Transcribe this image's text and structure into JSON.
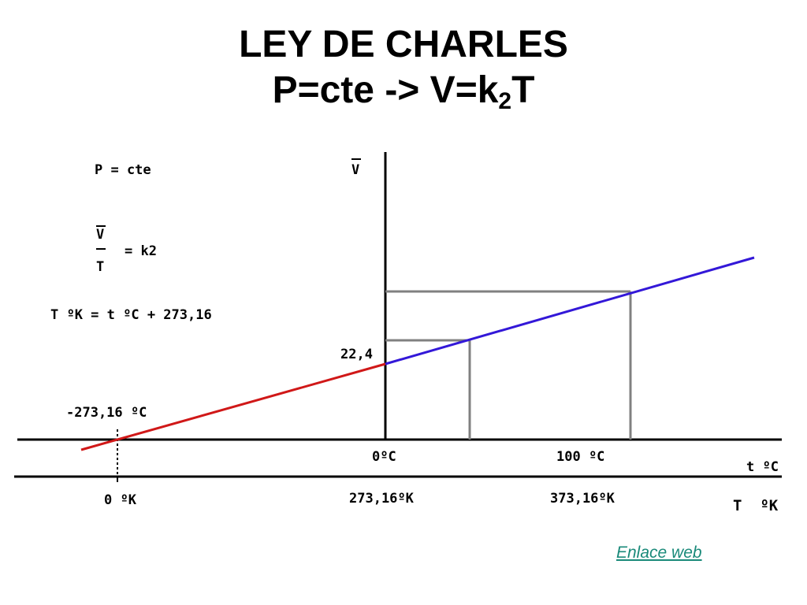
{
  "title": {
    "line1": "LEY DE CHARLES",
    "line2_pre": "P=cte -> V=k",
    "line2_sub": "2",
    "line2_post": "T"
  },
  "notes": {
    "pressure": "P = cte",
    "frac_num": "V",
    "frac_den": "T",
    "frac_eq": "= k2",
    "conversion": "T ºK = t ºC + 273,16"
  },
  "axes": {
    "v_label": "V",
    "t_label": "t ºC",
    "kelvin_label": "T  ºK",
    "v0": "22,4",
    "abs_zero_c": "-273,16 ºC",
    "zero_c": "0ºC",
    "hundred_c": "100 ºC",
    "zero_k": "0 ºK",
    "k_273": "273,16ºK",
    "k_373": "373,16ºK"
  },
  "colors": {
    "extrapolated_line": "#d01818",
    "measured_line": "#3318d8",
    "guide_lines": "#808080",
    "link": "#1a8a7a"
  },
  "link": {
    "label": "Enlace web"
  }
}
